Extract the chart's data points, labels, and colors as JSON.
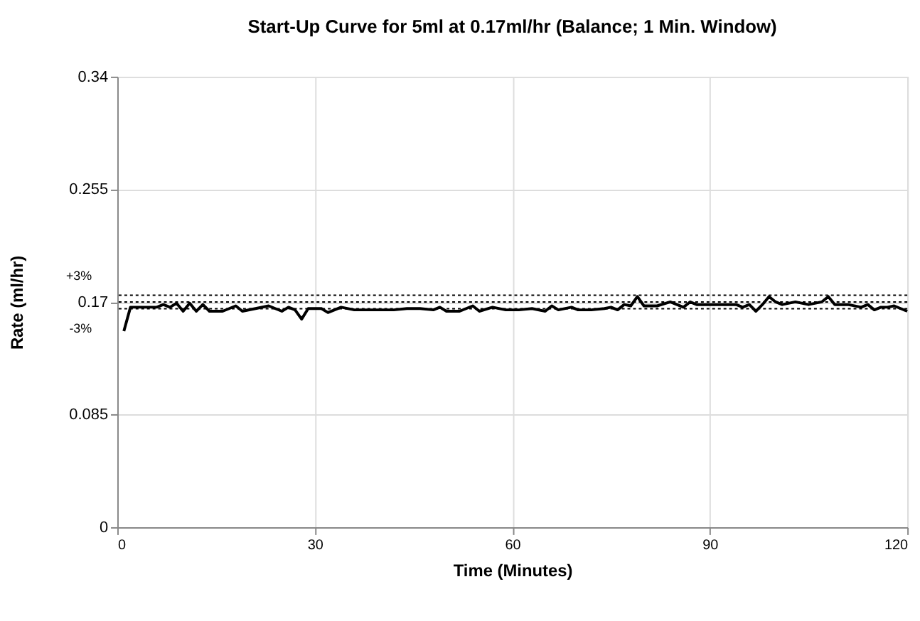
{
  "chart_data": {
    "type": "line",
    "title": "Start-Up Curve for 5ml at 0.17ml/hr (Balance; 1 Min. Window)",
    "xlabel": "Time (Minutes)",
    "ylabel": "Rate (ml/hr)",
    "x": [
      1,
      2,
      4,
      6,
      7,
      8,
      9,
      10,
      11,
      12,
      13,
      14,
      16,
      18,
      19,
      21,
      23,
      25,
      26,
      27,
      28,
      29,
      31,
      32,
      34,
      36,
      38,
      40,
      42,
      44,
      46,
      48,
      49,
      50,
      52,
      54,
      55,
      57,
      59,
      61,
      63,
      65,
      66,
      67,
      69,
      70,
      72,
      74,
      75,
      76,
      77,
      78,
      79,
      80,
      82,
      84,
      86,
      87,
      88,
      90,
      92,
      94,
      95,
      96,
      97,
      98,
      99,
      100,
      101,
      103,
      105,
      107,
      108,
      109,
      111,
      113,
      114,
      115,
      116,
      117,
      118,
      119,
      120
    ],
    "series": [
      {
        "color": "#000000",
        "values": [
          0.148,
          0.166,
          0.166,
          0.166,
          0.168,
          0.166,
          0.169,
          0.163,
          0.169,
          0.163,
          0.168,
          0.163,
          0.163,
          0.167,
          0.163,
          0.165,
          0.167,
          0.163,
          0.166,
          0.164,
          0.157,
          0.165,
          0.165,
          0.162,
          0.166,
          0.164,
          0.164,
          0.164,
          0.164,
          0.165,
          0.165,
          0.164,
          0.166,
          0.163,
          0.163,
          0.167,
          0.163,
          0.166,
          0.164,
          0.164,
          0.165,
          0.163,
          0.167,
          0.164,
          0.166,
          0.164,
          0.164,
          0.165,
          0.166,
          0.164,
          0.168,
          0.167,
          0.174,
          0.167,
          0.167,
          0.17,
          0.166,
          0.17,
          0.168,
          0.168,
          0.168,
          0.168,
          0.166,
          0.168,
          0.163,
          0.168,
          0.174,
          0.17,
          0.168,
          0.17,
          0.168,
          0.17,
          0.174,
          0.168,
          0.168,
          0.166,
          0.168,
          0.164,
          0.166,
          0.166,
          0.167,
          0.165,
          0.163
        ]
      }
    ],
    "xlim": [
      0,
      120
    ],
    "xticks": [
      0,
      30,
      60,
      90,
      120
    ],
    "ylim": [
      0,
      0.34
    ],
    "yticks": [
      0,
      0.085,
      0.17,
      0.255,
      0.34
    ],
    "ref_lines": [
      {
        "axis": "y",
        "value": 0.1751,
        "line_style": "dotted"
      },
      {
        "axis": "y",
        "value": 0.17,
        "line_style": "dotted"
      },
      {
        "axis": "y",
        "value": 0.1649,
        "line_style": "dotted"
      }
    ],
    "annotations": [
      "+3%",
      "-3%"
    ],
    "grid": true,
    "line_style": "solid",
    "marker": "none"
  }
}
